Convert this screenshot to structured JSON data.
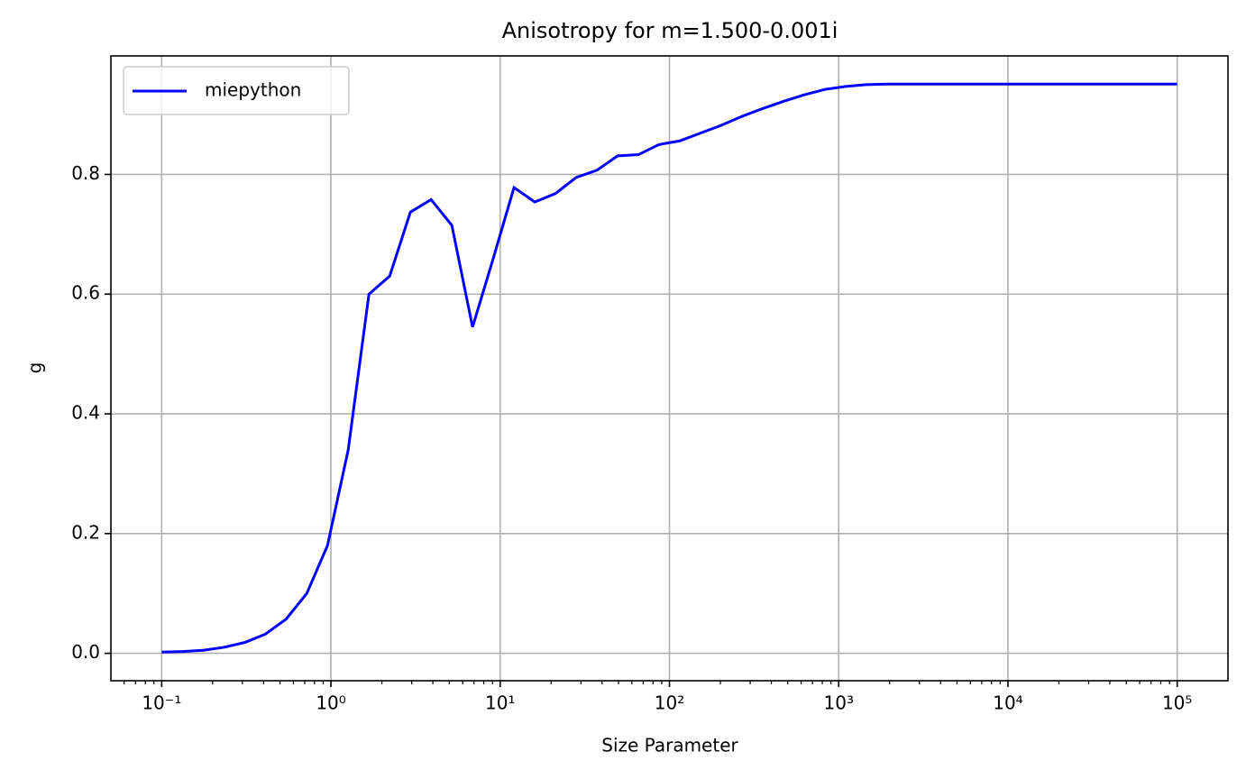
{
  "chart_data": {
    "type": "line",
    "title": "Anisotropy for m=1.500-0.001i",
    "x_label": "Size Parameter",
    "y_label": "g",
    "x_scale": "log",
    "grid": true,
    "legend_position": "upper left",
    "xlim": [
      0.0501,
      199526
    ],
    "ylim": [
      -0.0458,
      0.998
    ],
    "xticks": [
      {
        "value": 0.1,
        "label": "10⁻¹"
      },
      {
        "value": 1,
        "label": "10⁰"
      },
      {
        "value": 10,
        "label": "10¹"
      },
      {
        "value": 100,
        "label": "10²"
      },
      {
        "value": 1000,
        "label": "10³"
      },
      {
        "value": 10000,
        "label": "10⁴"
      },
      {
        "value": 100000,
        "label": "10⁵"
      }
    ],
    "yticks": [
      {
        "value": 0,
        "label": "0.0"
      },
      0.2,
      0.4,
      0.6,
      0.8
    ],
    "x": [
      0.1,
      0.1326,
      0.1758,
      0.233,
      0.3089,
      0.4095,
      0.5429,
      0.7197,
      0.9541,
      1.265,
      1.677,
      2.223,
      2.947,
      3.907,
      5.179,
      6.866,
      9.103,
      12.07,
      16.0,
      21.21,
      28.12,
      37.28,
      49.42,
      65.51,
      86.85,
      115.1,
      152.6,
      202.4,
      268.3,
      355.6,
      471.5,
      625.1,
      828.6,
      1099,
      1456,
      1931,
      2560,
      3393,
      4498,
      5964,
      7906,
      10481,
      13895,
      18421,
      24421,
      32375,
      42919,
      56899,
      75431,
      100000
    ],
    "series": [
      {
        "name": "miepython",
        "color": "#0000ff",
        "values": [
          0.002,
          0.003,
          0.005,
          0.01,
          0.018,
          0.032,
          0.057,
          0.1,
          0.18,
          0.34,
          0.6,
          0.63,
          0.737,
          0.758,
          0.715,
          0.545,
          0.66,
          0.778,
          0.754,
          0.768,
          0.795,
          0.807,
          0.831,
          0.833,
          0.85,
          0.856,
          0.869,
          0.882,
          0.897,
          0.91,
          0.922,
          0.933,
          0.942,
          0.947,
          0.95,
          0.951,
          0.951,
          0.951,
          0.951,
          0.951,
          0.951,
          0.951,
          0.951,
          0.951,
          0.951,
          0.951,
          0.951,
          0.951,
          0.951,
          0.951
        ]
      }
    ]
  }
}
